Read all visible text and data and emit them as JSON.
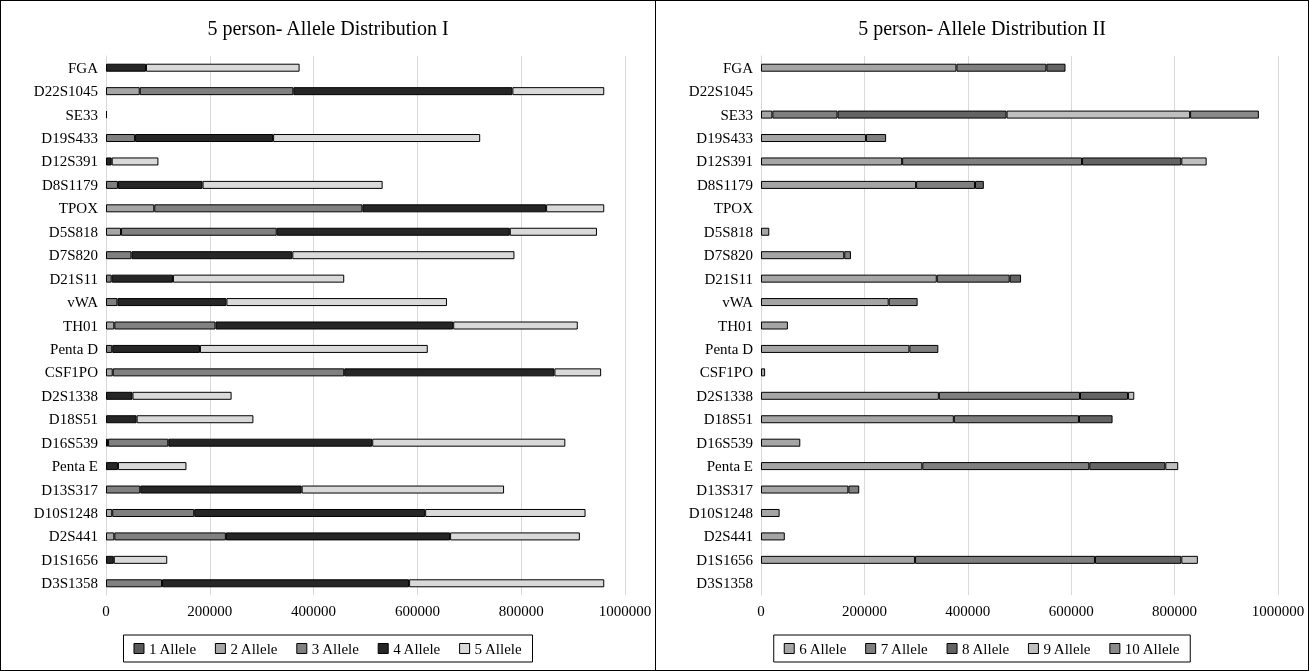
{
  "chart_data": [
    {
      "type": "bar",
      "orientation": "horizontal",
      "stacked": true,
      "title": "5 person- Allele Distribution I",
      "categories": [
        "FGA",
        "D22S1045",
        "SE33",
        "D19S433",
        "D12S391",
        "D8S1179",
        "TPOX",
        "D5S818",
        "D7S820",
        "D21S11",
        "vWA",
        "TH01",
        "Penta D",
        "CSF1PO",
        "D2S1338",
        "D18S51",
        "D16S539",
        "Penta E",
        "D13S317",
        "D10S1248",
        "D2S441",
        "D1S1656",
        "D3S1358"
      ],
      "series": [
        {
          "name": "1 Allele",
          "color": "#595959",
          "values": [
            null,
            null,
            2000,
            null,
            null,
            null,
            null,
            null,
            null,
            null,
            null,
            null,
            null,
            null,
            null,
            null,
            null,
            null,
            null,
            null,
            null,
            null,
            null
          ]
        },
        {
          "name": "2 Allele",
          "color": "#a6a6a6",
          "values": [
            null,
            65000,
            null,
            null,
            null,
            null,
            93000,
            29000,
            null,
            null,
            null,
            16000,
            null,
            13000,
            null,
            null,
            4000,
            null,
            null,
            12000,
            16000,
            null,
            null
          ]
        },
        {
          "name": "3 Allele",
          "color": "#808080",
          "values": [
            null,
            296000,
            null,
            56000,
            null,
            23000,
            401000,
            300000,
            49000,
            11000,
            22000,
            195000,
            12000,
            446000,
            null,
            null,
            116000,
            null,
            66000,
            158000,
            215000,
            null,
            108000
          ]
        },
        {
          "name": "4 Allele",
          "color": "#262626",
          "values": [
            77000,
            422000,
            null,
            266000,
            11000,
            163000,
            354000,
            449000,
            310000,
            118000,
            210000,
            458000,
            169000,
            405000,
            51000,
            59000,
            393000,
            23000,
            311000,
            445000,
            432000,
            15000,
            476000
          ]
        },
        {
          "name": "5 Allele",
          "color": "#d9d9d9",
          "values": [
            296000,
            177000,
            null,
            399000,
            90000,
            347000,
            112000,
            168000,
            428000,
            330000,
            425000,
            240000,
            439000,
            90000,
            191000,
            225000,
            372000,
            132000,
            390000,
            309000,
            250000,
            103000,
            376000
          ]
        }
      ],
      "xlim": [
        0,
        1000000
      ],
      "xticks": [
        0,
        200000,
        400000,
        600000,
        800000,
        1000000
      ],
      "grid": "x",
      "legend": "bottom"
    },
    {
      "type": "bar",
      "orientation": "horizontal",
      "stacked": true,
      "title": "5 person- Allele Distribution II",
      "categories": [
        "FGA",
        "D22S1045",
        "SE33",
        "D19S433",
        "D12S391",
        "D8S1179",
        "TPOX",
        "D5S818",
        "D7S820",
        "D21S11",
        "vWA",
        "TH01",
        "Penta D",
        "CSF1PO",
        "D2S1338",
        "D18S51",
        "D16S539",
        "Penta E",
        "D13S317",
        "D10S1248",
        "D2S441",
        "D1S1656",
        "D3S1358"
      ],
      "series": [
        {
          "name": "6 Allele",
          "color": "#a5a5a5",
          "values": [
            378000,
            null,
            22000,
            203000,
            273000,
            300000,
            null,
            16000,
            161000,
            340000,
            247000,
            52000,
            287000,
            8000,
            344000,
            373000,
            76000,
            312000,
            169000,
            36000,
            46000,
            298000,
            null
          ]
        },
        {
          "name": "7 Allele",
          "color": "#7f7f7f",
          "values": [
            174000,
            null,
            126000,
            39000,
            348000,
            114000,
            null,
            null,
            13000,
            141000,
            56000,
            null,
            56000,
            null,
            273000,
            242000,
            null,
            323000,
            21000,
            null,
            null,
            348000,
            null
          ]
        },
        {
          "name": "8 Allele",
          "color": "#636363",
          "values": [
            37000,
            null,
            327000,
            null,
            192000,
            17000,
            null,
            null,
            null,
            22000,
            null,
            null,
            null,
            null,
            93000,
            65000,
            null,
            147000,
            null,
            null,
            null,
            167000,
            null
          ]
        },
        {
          "name": "9 Allele",
          "color": "#bfbfbf",
          "values": [
            null,
            null,
            355000,
            null,
            49000,
            null,
            null,
            null,
            null,
            null,
            null,
            null,
            null,
            null,
            12000,
            null,
            null,
            25000,
            null,
            null,
            null,
            32000,
            null
          ]
        },
        {
          "name": "10 Allele",
          "color": "#8a8a8a",
          "values": [
            null,
            null,
            133000,
            null,
            null,
            null,
            null,
            null,
            null,
            null,
            null,
            null,
            null,
            null,
            null,
            null,
            null,
            null,
            null,
            null,
            null,
            null,
            null
          ]
        }
      ],
      "xlim": [
        0,
        1000000
      ],
      "xticks": [
        0,
        200000,
        400000,
        600000,
        800000,
        1000000
      ],
      "grid": "x",
      "legend": "bottom"
    }
  ]
}
